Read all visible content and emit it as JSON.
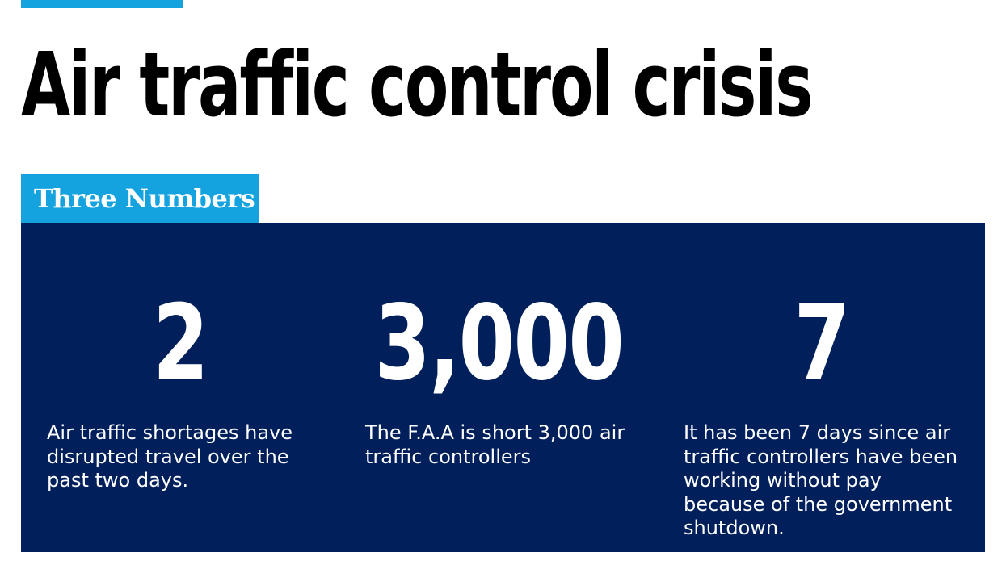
{
  "headline": "Air traffic control crisis",
  "section": {
    "label": "Three Numbers"
  },
  "stats": [
    {
      "number": "2",
      "description": "Air traffic shortages have disrupted travel over the past two days."
    },
    {
      "number": "3,000",
      "description": "The F.A.A is short 3,000 air traffic controllers"
    },
    {
      "number": "7",
      "description": "It has been 7 days since air traffic controllers have been working without pay because of the government shutdown."
    }
  ],
  "colors": {
    "accent": "#15a3e0",
    "panel": "#001f5b",
    "headline": "#000000",
    "panel_text": "#ffffff"
  }
}
